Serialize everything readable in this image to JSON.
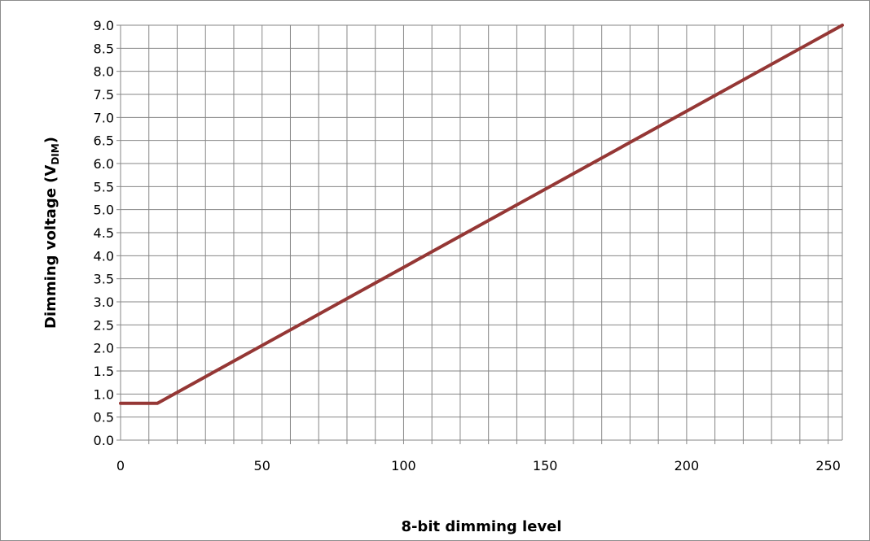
{
  "chart_data": {
    "type": "line",
    "xlabel": "8-bit dimming level",
    "ylabel": {
      "main": "Dimming voltage (V",
      "subscript": "DIM",
      "close": ")"
    },
    "xlim": [
      0,
      255
    ],
    "ylim": [
      0,
      9.0
    ],
    "x_major_ticks": [
      0,
      50,
      100,
      150,
      200,
      250
    ],
    "x_minor_step": 10,
    "y_ticks": [
      "0.0",
      "0.5",
      "1.0",
      "1.5",
      "2.0",
      "2.5",
      "3.0",
      "3.5",
      "4.0",
      "4.5",
      "5.0",
      "5.5",
      "6.0",
      "6.5",
      "7.0",
      "7.5",
      "8.0",
      "8.5",
      "9.0"
    ],
    "grid": true,
    "legend": "none",
    "series": [
      {
        "color": "#953735",
        "points": [
          [
            0,
            0.8
          ],
          [
            13,
            0.8
          ],
          [
            255,
            9.0
          ]
        ]
      }
    ]
  }
}
